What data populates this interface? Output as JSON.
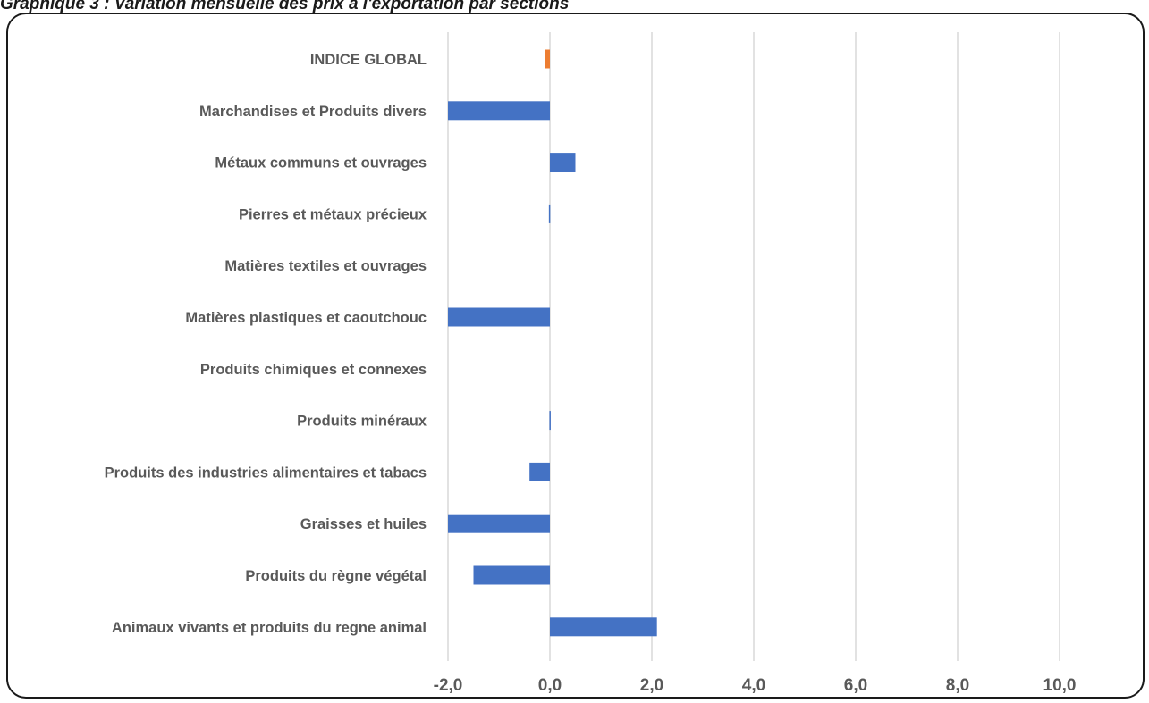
{
  "title": "Graphique 3 : Variation mensuelle des prix à l'exportation par sections",
  "colors": {
    "series": "#4472C4",
    "highlight": "#ED7D31",
    "gridline": "#d9d9d9",
    "text": "#595959"
  },
  "chart_data": {
    "type": "bar",
    "orientation": "horizontal",
    "categories": [
      "INDICE GLOBAL",
      "Marchandises et Produits divers",
      "Métaux communs et ouvrages",
      "Pierres et métaux précieux",
      "Matières textiles et ouvrages",
      "Matières plastiques et caoutchouc",
      "Produits chimiques et connexes",
      "Produits minéraux",
      "Produits des industries alimentaires et tabacs",
      "Graisses et huiles",
      "Produits du règne végétal",
      "Animaux vivants et produits du regne animal"
    ],
    "values": [
      -0.1,
      -2.0,
      0.5,
      -0.02,
      0.0,
      -2.0,
      0.0,
      -0.01,
      -0.4,
      -2.0,
      -1.5,
      2.1
    ],
    "highlight_categories": [
      "INDICE GLOBAL"
    ],
    "xlim": [
      -2.0,
      11.0
    ],
    "xticks": [
      -2.0,
      0.0,
      2.0,
      4.0,
      6.0,
      8.0,
      10.0
    ],
    "xtick_labels": [
      "-2,0",
      "0,0",
      "2,0",
      "4,0",
      "6,0",
      "8,0",
      "10,0"
    ],
    "grid": "vertical",
    "legend": "none",
    "xlabel": "",
    "ylabel": ""
  }
}
